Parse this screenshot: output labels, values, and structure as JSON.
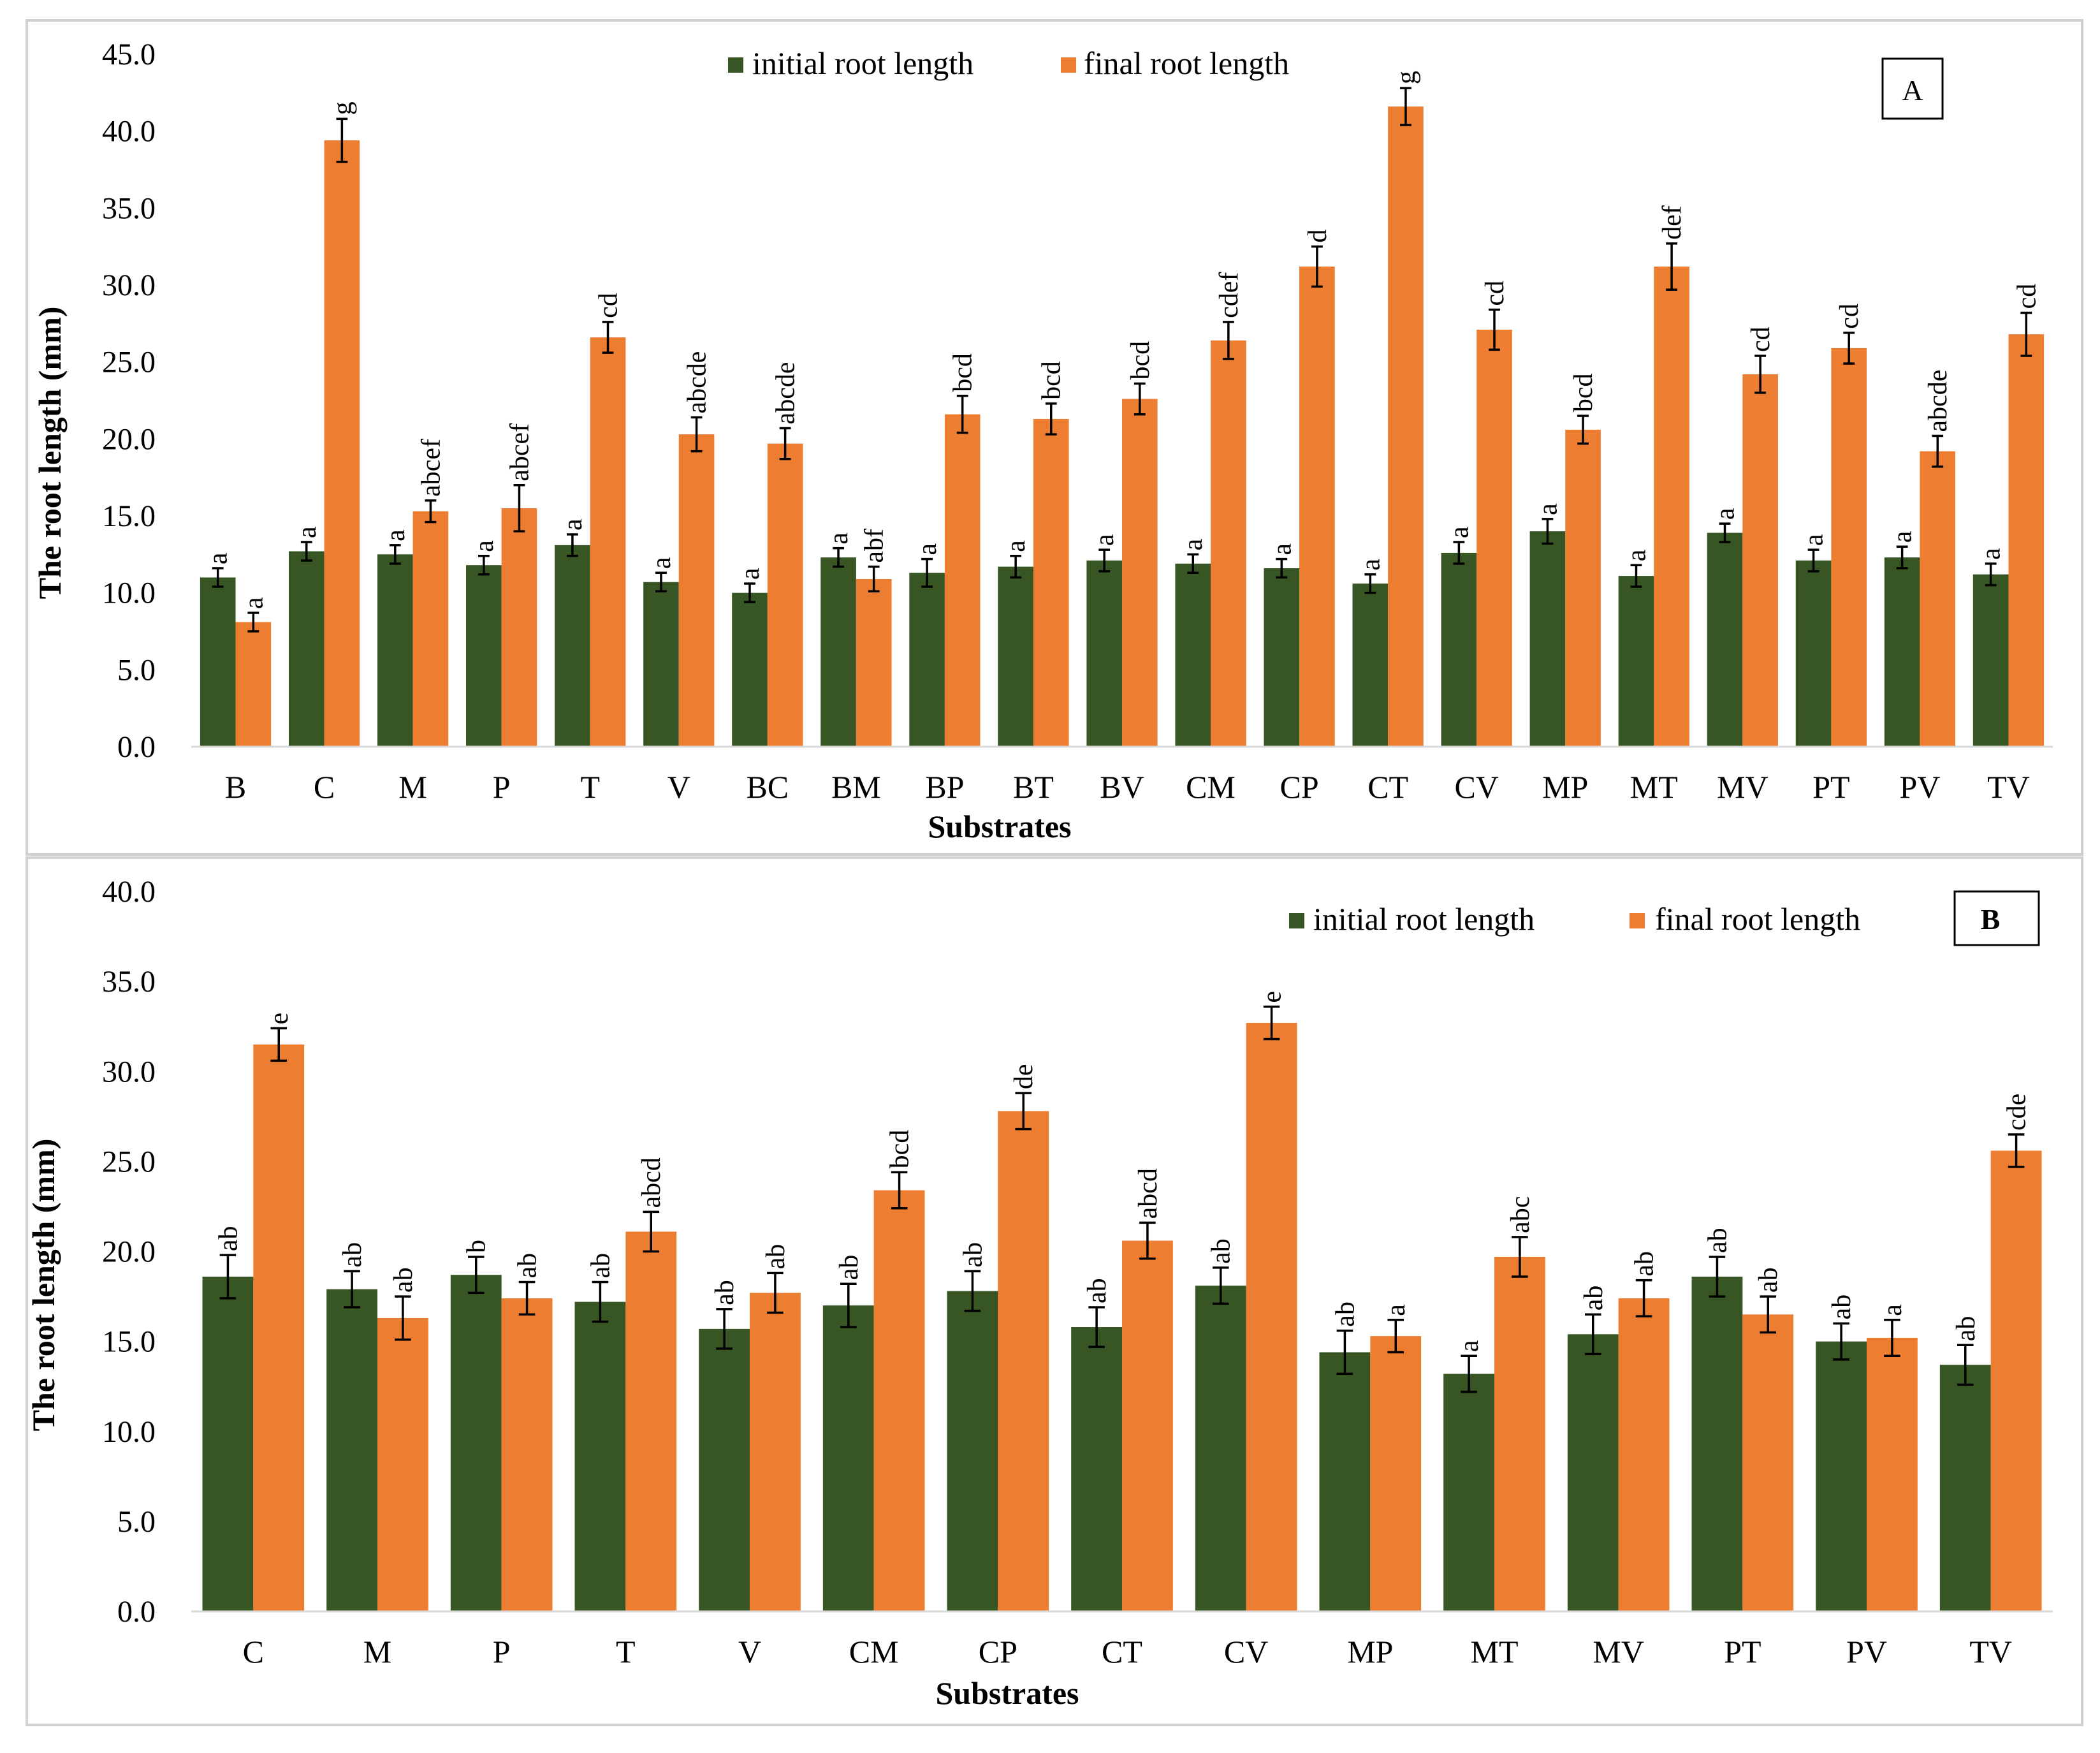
{
  "colors": {
    "initial": "#375623",
    "final": "#ED7D31"
  },
  "legend": {
    "initial": "initial root length",
    "final": "final root length"
  },
  "chart_data": [
    {
      "type": "bar",
      "panel_label": "A",
      "xlabel": "Substrates",
      "ylabel": "The root length  (mm)",
      "ylim": [
        0,
        45
      ],
      "ytick_step": 5,
      "yticks": [
        "0.0",
        "5.0",
        "10.0",
        "15.0",
        "20.0",
        "25.0",
        "30.0",
        "35.0",
        "40.0",
        "45.0"
      ],
      "legend_position": "top-center",
      "categories": [
        "B",
        "C",
        "M",
        "P",
        "T",
        "V",
        "BC",
        "BM",
        "BP",
        "BT",
        "BV",
        "CM",
        "CP",
        "CT",
        "CV",
        "MP",
        "MT",
        "MV",
        "PT",
        "PV",
        "TV"
      ],
      "series": [
        {
          "name": "initial root length",
          "values": [
            11.0,
            12.7,
            12.5,
            11.8,
            13.1,
            10.7,
            10.0,
            12.3,
            11.3,
            11.7,
            12.1,
            11.9,
            11.6,
            10.6,
            12.6,
            14.0,
            11.1,
            13.9,
            12.1,
            12.3,
            11.2
          ],
          "errors": [
            0.6,
            0.6,
            0.6,
            0.6,
            0.7,
            0.6,
            0.6,
            0.6,
            0.9,
            0.7,
            0.7,
            0.6,
            0.6,
            0.6,
            0.7,
            0.8,
            0.7,
            0.6,
            0.7,
            0.7,
            0.7
          ],
          "letters": [
            "a",
            "a",
            "a",
            "a",
            "a",
            "a",
            "a",
            "a",
            "a",
            "a",
            "a",
            "a",
            "a",
            "a",
            "a",
            "a",
            "a",
            "a",
            "a",
            "a",
            "a"
          ]
        },
        {
          "name": "final root length",
          "values": [
            8.1,
            39.4,
            15.3,
            15.5,
            26.6,
            20.3,
            19.7,
            10.9,
            21.6,
            21.3,
            22.6,
            26.4,
            31.2,
            41.6,
            27.1,
            20.6,
            31.2,
            24.2,
            25.9,
            19.2,
            26.8
          ],
          "errors": [
            0.6,
            1.4,
            0.7,
            1.5,
            1.0,
            1.1,
            1.0,
            0.8,
            1.2,
            1.0,
            1.0,
            1.2,
            1.3,
            1.2,
            1.3,
            0.9,
            1.5,
            1.2,
            1.0,
            1.0,
            1.4
          ],
          "letters": [
            "a",
            "g",
            "abcef",
            "abcef",
            "cd",
            "abcde",
            "abcde",
            "abf",
            "bcd",
            "bcd",
            "bcd",
            "cdef",
            "d",
            "g",
            "cd",
            "bcd",
            "def",
            "cd",
            "cd",
            "abcde",
            "cd"
          ]
        }
      ]
    },
    {
      "type": "bar",
      "panel_label": "B",
      "xlabel": "Substrates",
      "ylabel": "The  root length (mm)",
      "ylim": [
        0,
        40
      ],
      "ytick_step": 5,
      "yticks": [
        "0.0",
        "5.0",
        "10.0",
        "15.0",
        "20.0",
        "25.0",
        "30.0",
        "35.0",
        "40.0"
      ],
      "legend_position": "top-right",
      "categories": [
        "C",
        "M",
        "P",
        "T",
        "V",
        "CM",
        "CP",
        "CT",
        "CV",
        "MP",
        "MT",
        "MV",
        "PT",
        "PV",
        "TV"
      ],
      "series": [
        {
          "name": "initial root length",
          "values": [
            18.6,
            17.9,
            18.7,
            17.2,
            15.7,
            17.0,
            17.8,
            15.8,
            18.1,
            14.4,
            13.2,
            15.4,
            18.6,
            15.0,
            13.7
          ],
          "errors": [
            1.2,
            1.0,
            1.0,
            1.1,
            1.1,
            1.2,
            1.1,
            1.1,
            1.0,
            1.2,
            1.0,
            1.1,
            1.1,
            1.0,
            1.1
          ],
          "letters": [
            "ab",
            "ab",
            "b",
            "ab",
            "ab",
            "ab",
            "ab",
            "ab",
            "ab",
            "ab",
            "a",
            "ab",
            "ab",
            "ab",
            "ab"
          ]
        },
        {
          "name": "final root length",
          "values": [
            31.5,
            16.3,
            17.4,
            21.1,
            17.7,
            23.4,
            27.8,
            20.6,
            32.7,
            15.3,
            19.7,
            17.4,
            16.5,
            15.2,
            25.6
          ],
          "errors": [
            0.9,
            1.2,
            0.9,
            1.1,
            1.1,
            1.0,
            1.0,
            1.0,
            0.9,
            0.9,
            1.1,
            1.0,
            1.0,
            1.0,
            0.9
          ],
          "letters": [
            "e",
            "ab",
            "ab",
            "abcd",
            "ab",
            "bcd",
            "de",
            "abcd",
            "e",
            "a",
            "abc",
            "ab",
            "ab",
            "a",
            "cde"
          ]
        }
      ]
    }
  ]
}
